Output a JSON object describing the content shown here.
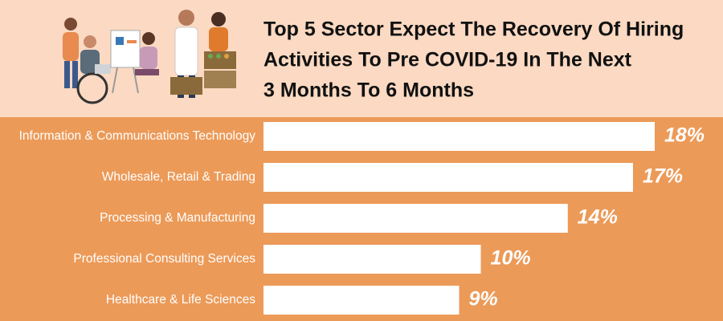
{
  "chart_data": {
    "type": "bar",
    "orientation": "horizontal",
    "title": [
      "Top 5 Sector Expect The Recovery Of Hiring",
      "Activities To Pre COVID-19 In The Next",
      "3 Months To 6 Months"
    ],
    "categories": [
      "Information & Communications Technology",
      "Wholesale, Retail & Trading",
      "Processing & Manufacturing",
      "Professional Consulting Services",
      "Healthcare & Life Sciences"
    ],
    "values": [
      18,
      17,
      14,
      10,
      9
    ],
    "value_labels": [
      "18%",
      "17%",
      "14%",
      "10%",
      "9%"
    ],
    "color": "#ffffff"
  }
}
